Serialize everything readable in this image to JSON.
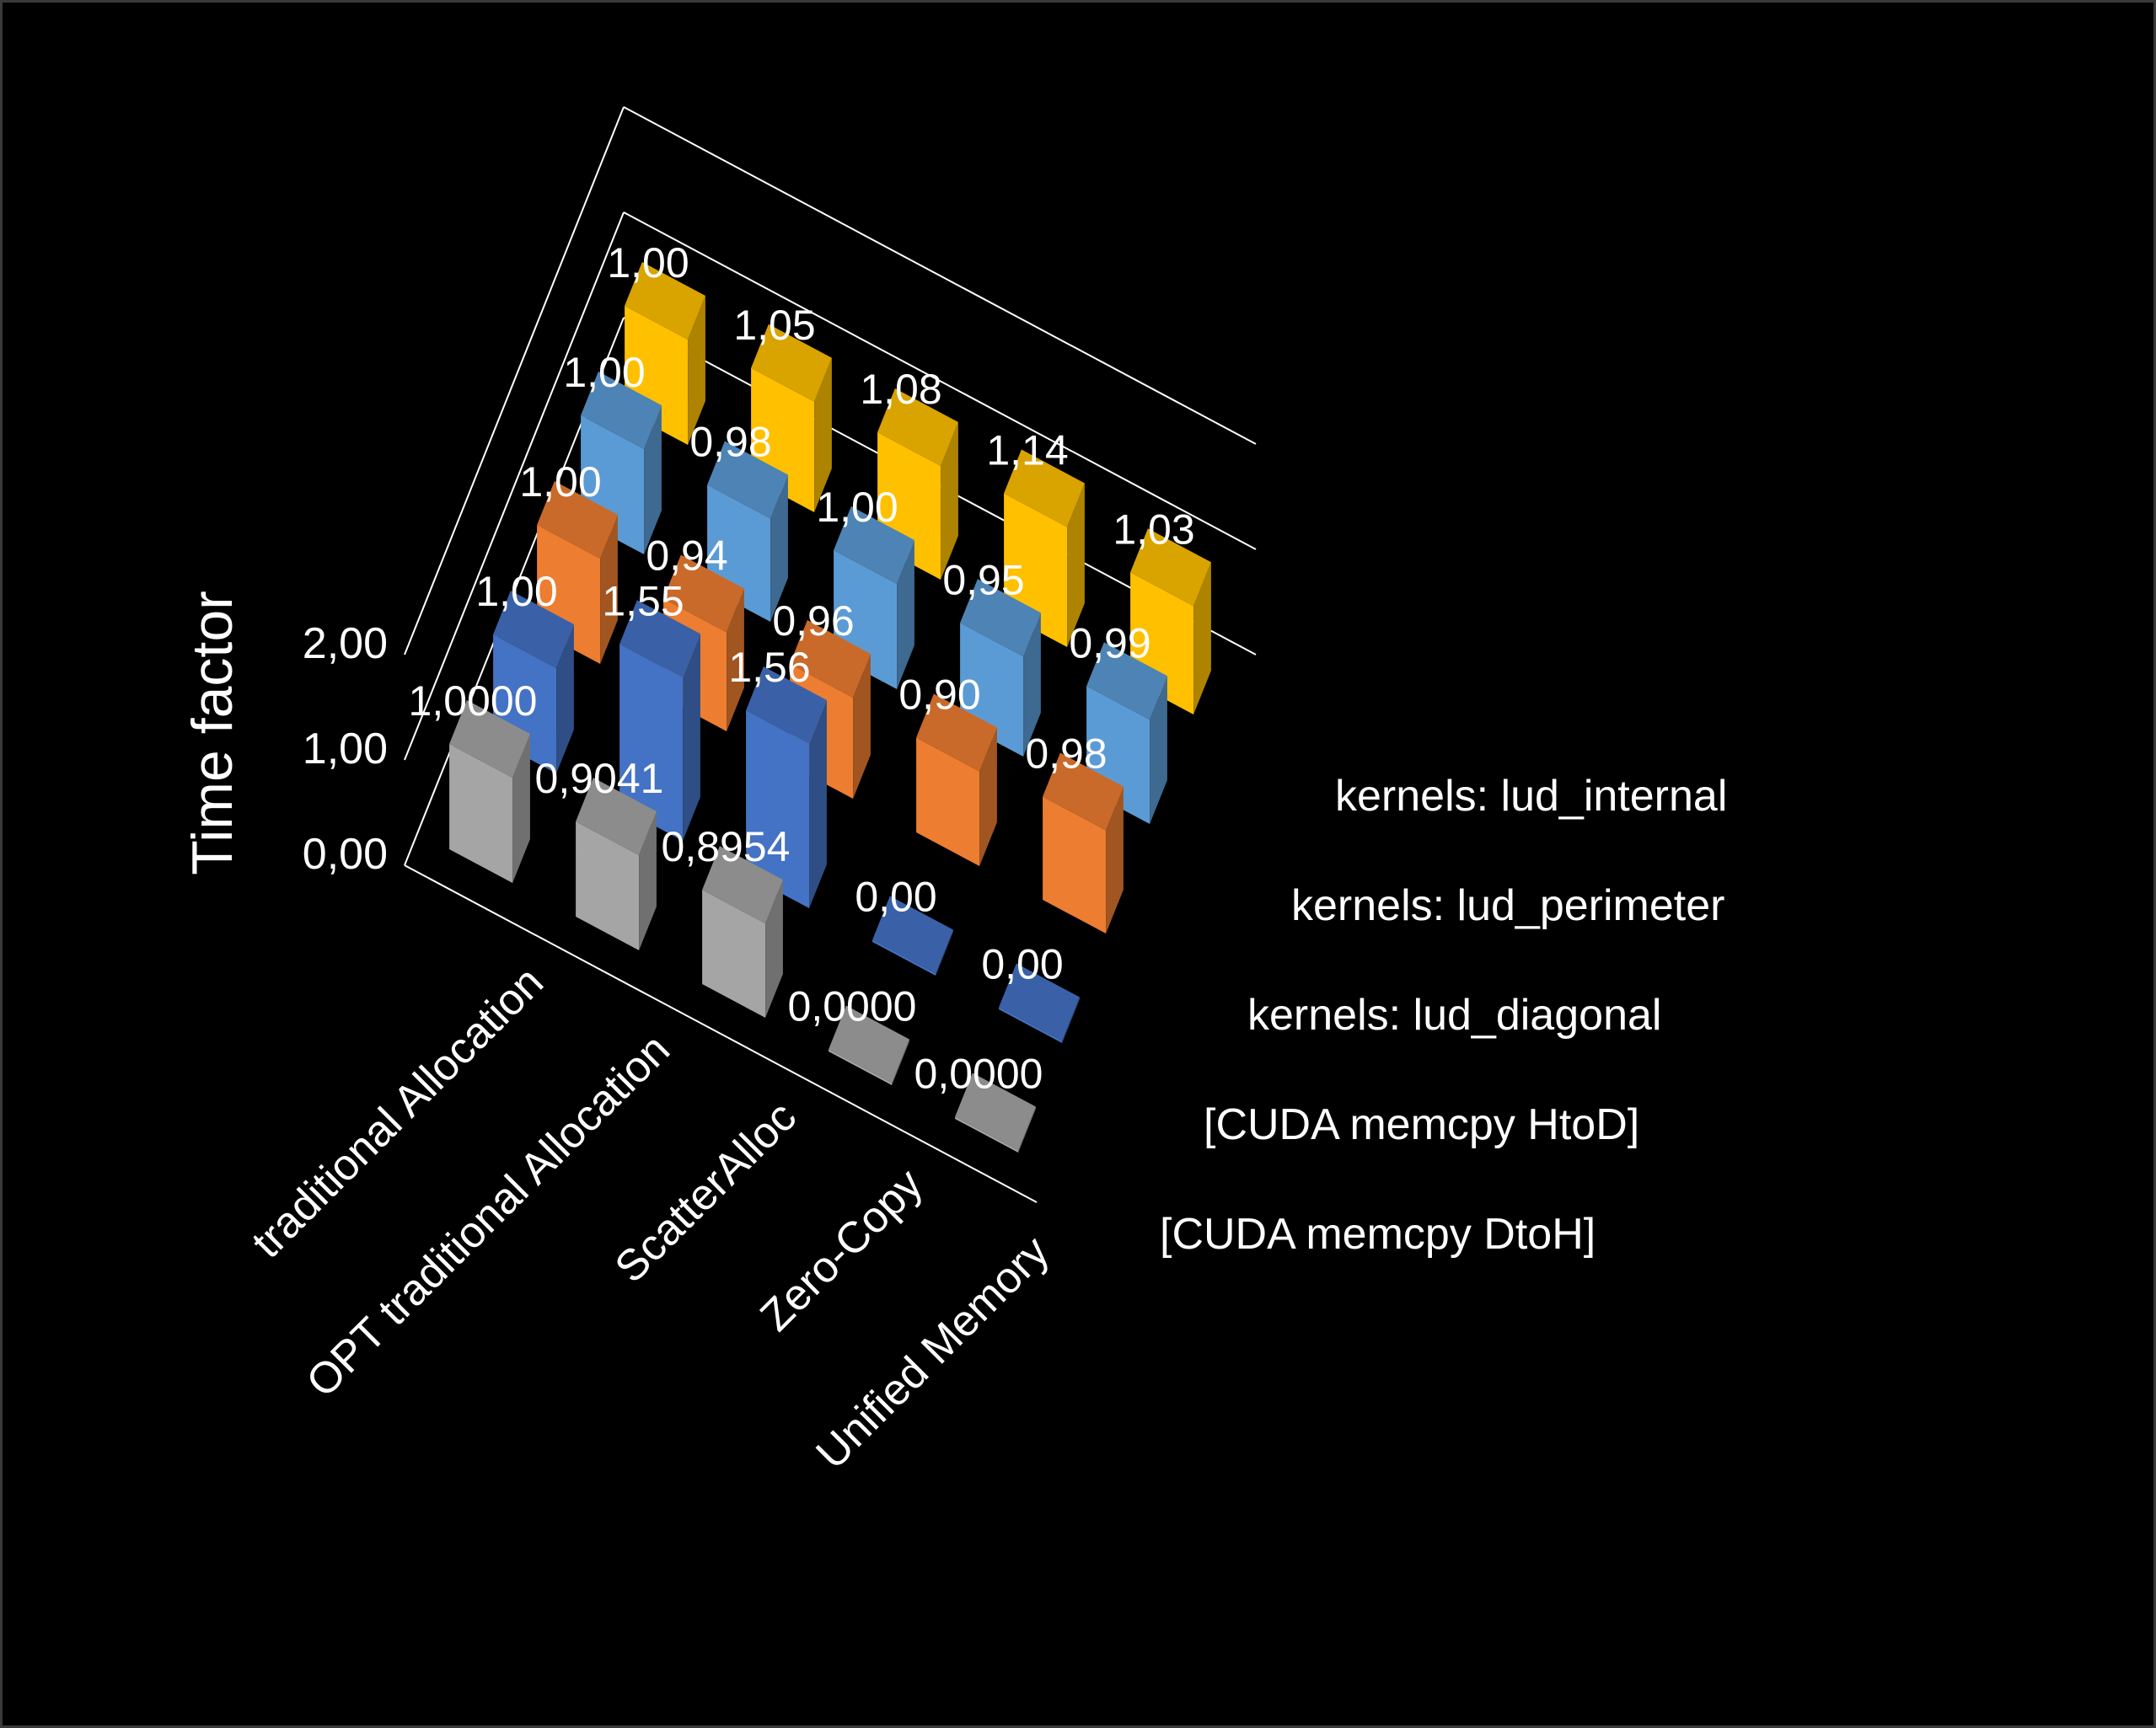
{
  "colors": {
    "background": "#000000",
    "kernels: lud_internal": "#FFC000",
    "kernels: lud_perimeter": "#5B9BD5",
    "kernels: lud_diagonal": "#ED7D31",
    "[CUDA memcpy HtoD]": "#4472C4",
    "[CUDA memcpy DtoH]": "#A5A5A5"
  },
  "chart_data": {
    "type": "bar",
    "subtype": "3d-column",
    "title": "",
    "ylabel": "Time factor",
    "ylim": [
      0,
      2
    ],
    "yticks": [
      "0,00",
      "1,00",
      "2,00"
    ],
    "categories": [
      "traditional Allocation",
      "OPT traditional Allocation",
      "ScatterAlloc",
      "Zero-Copy",
      "Unified Memory"
    ],
    "series": [
      {
        "name": "kernels: lud_internal",
        "values": [
          1.0,
          1.05,
          1.08,
          1.14,
          1.03
        ],
        "labels": [
          "1,00",
          "1,05",
          "1,08",
          "1,14",
          "1,03"
        ]
      },
      {
        "name": "kernels: lud_perimeter",
        "values": [
          1.0,
          0.98,
          1.0,
          0.95,
          0.99
        ],
        "labels": [
          "1,00",
          "0,98",
          "1,00",
          "0,95",
          "0,99"
        ]
      },
      {
        "name": "kernels: lud_diagonal",
        "values": [
          1.0,
          0.94,
          0.96,
          0.9,
          0.98
        ],
        "labels": [
          "1,00",
          "0,94",
          "0,96",
          "0,90",
          "0,98"
        ]
      },
      {
        "name": "[CUDA memcpy HtoD]",
        "values": [
          1.0,
          1.55,
          1.56,
          0.0,
          0.0
        ],
        "labels": [
          "1,00",
          "1,55",
          "1,56",
          "0,00",
          "0,00"
        ]
      },
      {
        "name": "[CUDA memcpy DtoH]",
        "values": [
          1.0,
          0.9041,
          0.8954,
          0.0,
          0.0
        ],
        "labels": [
          "1,0000",
          "0,9041",
          "0,8954",
          "0,0000",
          "0,0000"
        ]
      }
    ],
    "grid": true
  }
}
